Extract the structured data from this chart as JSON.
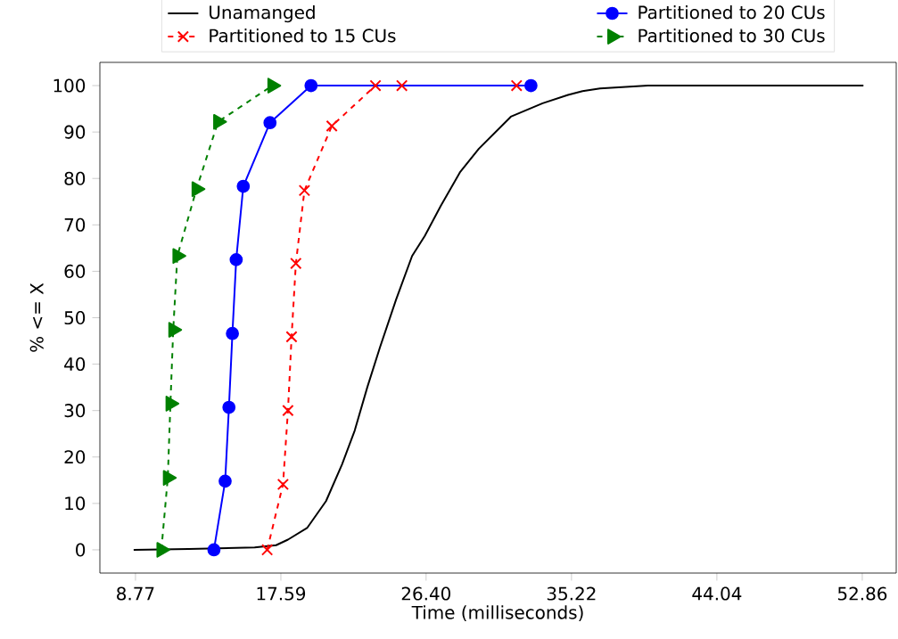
{
  "chart_data": {
    "type": "line",
    "xlabel": "Time (milliseconds)",
    "ylabel": "% <= X",
    "xlim": [
      6.61,
      54.92
    ],
    "ylim": [
      -5,
      105
    ],
    "xticks": [
      8.77,
      17.59,
      {
        "value": 26.4,
        "label": "26.40"
      },
      35.22,
      44.04,
      52.86
    ],
    "yticks": [
      0,
      10,
      20,
      30,
      40,
      50,
      60,
      70,
      80,
      90,
      100
    ],
    "legend": "top",
    "grid": false,
    "series": [
      {
        "name": "Unamanged",
        "color": "#000000",
        "marker": "none",
        "line_style": "solid",
        "x": [
          8.66,
          12.0,
          16.0,
          17.3,
          18.02,
          19.18,
          20.33,
          21.3,
          22.07,
          22.84,
          23.61,
          24.58,
          25.55,
          26.32,
          27.29,
          28.45,
          29.6,
          31.54,
          33.47,
          35.01,
          35.89,
          36.95,
          39.86,
          52.93
        ],
        "values": [
          0,
          0.2,
          0.5,
          1.0,
          2.2,
          4.7,
          10.5,
          18.4,
          25.7,
          35.1,
          43.7,
          53.9,
          63.3,
          67.6,
          74.1,
          81.3,
          86.4,
          93.3,
          96.2,
          98.0,
          98.8,
          99.4,
          100,
          100
        ]
      },
      {
        "name": "Partitioned to 15 CUs",
        "color": "#ff0000",
        "marker": "cross",
        "line_style": "dashed",
        "x": [
          16.76,
          17.72,
          18.02,
          18.24,
          18.5,
          19.02,
          20.68,
          23.33,
          24.93,
          31.89
        ],
        "values": [
          0,
          14.1,
          30.0,
          45.9,
          61.7,
          77.4,
          91.3,
          100,
          100,
          100
        ]
      },
      {
        "name": "Partitioned to 20 CUs",
        "color": "#0000ff",
        "marker": "circle",
        "line_style": "solid",
        "x": [
          13.53,
          14.21,
          14.44,
          14.65,
          14.88,
          15.31,
          16.93,
          19.42,
          32.76
        ],
        "values": [
          0,
          14.8,
          30.7,
          46.6,
          62.5,
          78.3,
          92.0,
          100,
          100
        ]
      },
      {
        "name": "Partitioned to 30 CUs",
        "color": "#008000",
        "marker": "triangle",
        "line_style": "dashed",
        "x": [
          10.34,
          10.73,
          10.89,
          11.06,
          11.31,
          12.47,
          13.78,
          17.07
        ],
        "values": [
          0,
          15.5,
          31.5,
          47.4,
          63.3,
          77.7,
          92.2,
          100
        ]
      }
    ]
  }
}
